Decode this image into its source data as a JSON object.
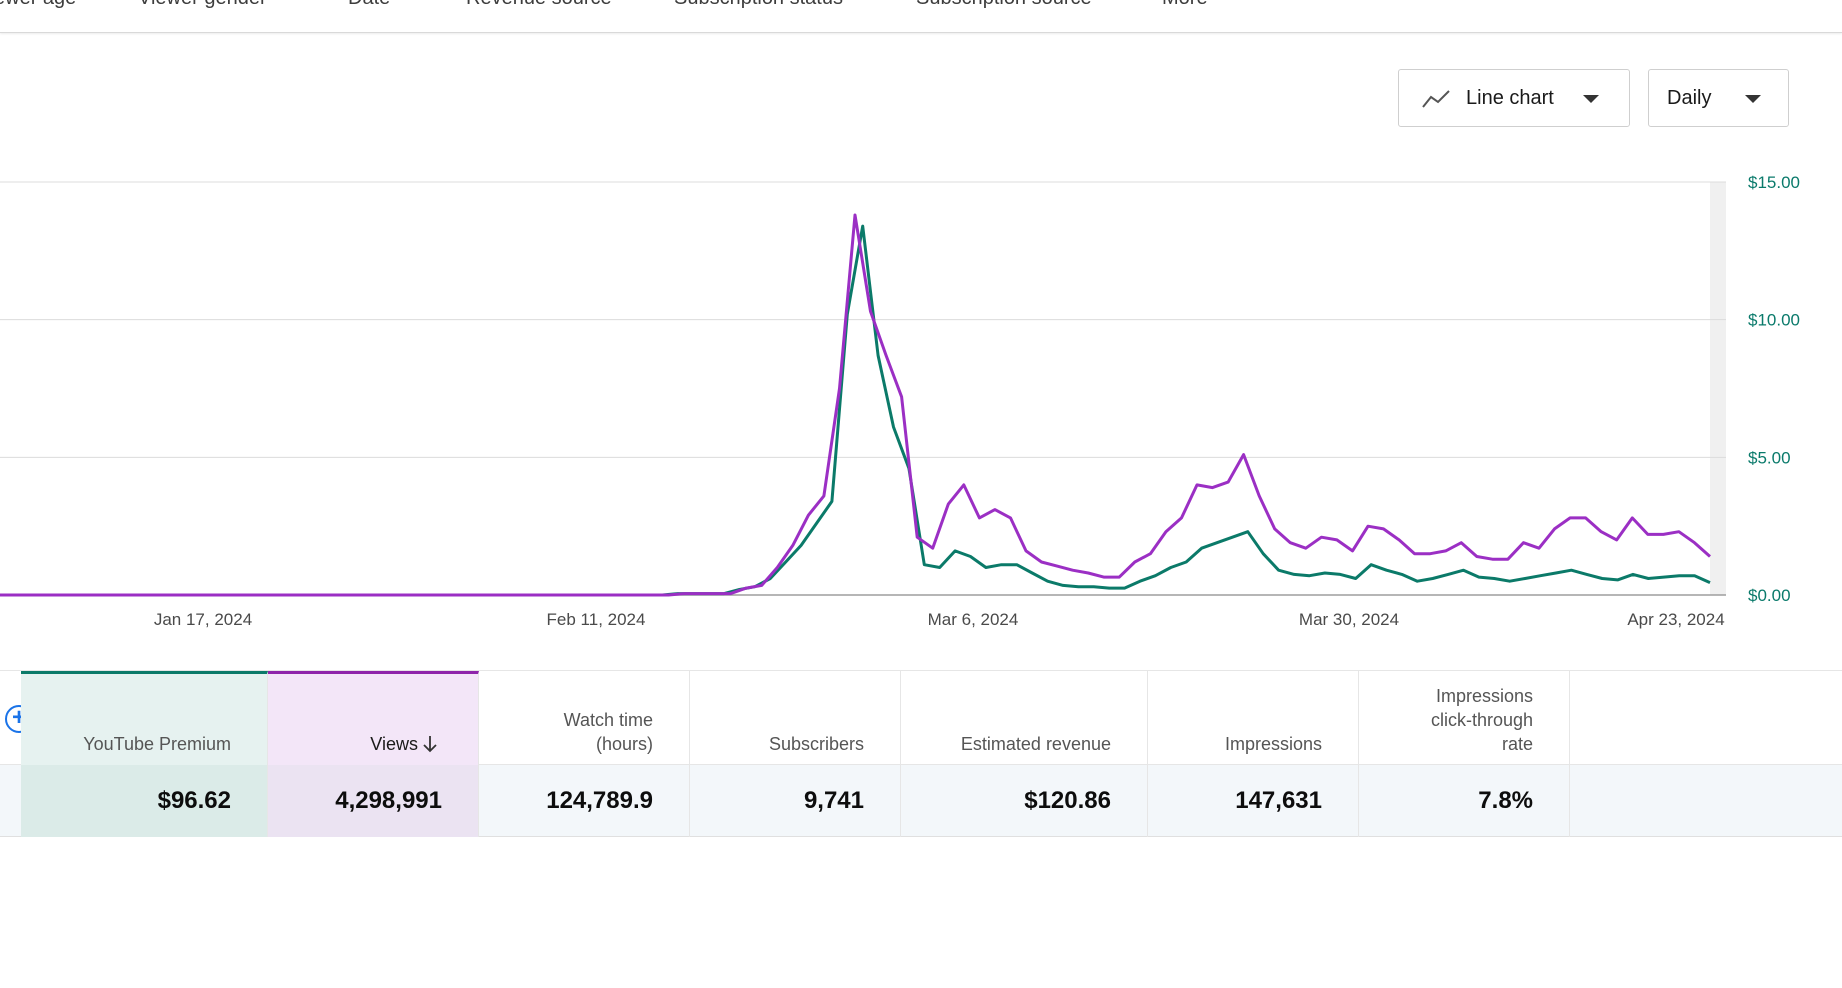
{
  "tabs": [
    "ewer age",
    "Viewer gender",
    "Date",
    "Revenue source",
    "Subscription status",
    "Subscription source",
    "More"
  ],
  "controls": {
    "chart_type_label": "Line chart",
    "chart_type_icon": "line-chart-icon",
    "interval_label": "Daily"
  },
  "colors": {
    "premium": "#0b7a69",
    "views": "#9b2fc4",
    "axis_text": "#0a7a6b"
  },
  "chart_data": {
    "type": "line",
    "x_tick_labels": [
      "Jan 17, 2024",
      "Feb 11, 2024",
      "Mar 6, 2024",
      "Mar 30, 2024",
      "Apr 23, 2024"
    ],
    "y_tick_labels": [
      "$15.00",
      "$10.00",
      "$5.00",
      "$0.00"
    ],
    "ylim": [
      0,
      15
    ],
    "grid": true,
    "series": [
      {
        "name": "YouTube Premium",
        "color": "#0b7a69",
        "values": [
          0,
          0,
          0,
          0,
          0,
          0,
          0,
          0,
          0,
          0,
          0,
          0,
          0,
          0,
          0,
          0,
          0,
          0,
          0,
          0,
          0,
          0,
          0,
          0,
          0,
          0,
          0,
          0,
          0,
          0,
          0,
          0,
          0,
          0,
          0,
          0,
          0,
          0,
          0,
          0,
          0,
          0,
          0,
          0,
          0.05,
          0.05,
          0.05,
          0.05,
          0.2,
          0.3,
          0.6,
          1.2,
          1.8,
          2.6,
          3.4,
          10.2,
          13.4,
          8.7,
          6.1,
          4.6,
          1.1,
          1.0,
          1.6,
          1.4,
          1.0,
          1.1,
          1.1,
          0.8,
          0.5,
          0.35,
          0.3,
          0.3,
          0.25,
          0.25,
          0.5,
          0.7,
          1.0,
          1.2,
          1.7,
          1.9,
          2.1,
          2.3,
          1.5,
          0.9,
          0.75,
          0.7,
          0.8,
          0.75,
          0.6,
          1.1,
          0.9,
          0.75,
          0.5,
          0.6,
          0.75,
          0.9,
          0.65,
          0.6,
          0.5,
          0.6,
          0.7,
          0.8,
          0.9,
          0.75,
          0.6,
          0.55,
          0.75,
          0.6,
          0.65,
          0.7,
          0.7,
          0.45
        ]
      },
      {
        "name": "Views",
        "color": "#9b2fc4",
        "values": [
          0,
          0,
          0,
          0,
          0,
          0,
          0,
          0,
          0,
          0,
          0,
          0,
          0,
          0,
          0,
          0,
          0,
          0,
          0,
          0,
          0,
          0,
          0,
          0,
          0,
          0,
          0,
          0,
          0,
          0,
          0,
          0,
          0,
          0,
          0,
          0,
          0,
          0,
          0,
          0,
          0,
          0,
          0,
          0,
          0.05,
          0.05,
          0.05,
          0.05,
          0.25,
          0.35,
          1.0,
          1.8,
          2.9,
          3.6,
          7.5,
          13.8,
          10.3,
          8.7,
          7.2,
          2.1,
          1.7,
          3.3,
          4.0,
          2.8,
          3.1,
          2.8,
          1.6,
          1.2,
          1.05,
          0.9,
          0.8,
          0.65,
          0.65,
          1.2,
          1.5,
          2.3,
          2.8,
          4.0,
          3.9,
          4.1,
          5.1,
          3.6,
          2.4,
          1.9,
          1.7,
          2.1,
          2.0,
          1.6,
          2.5,
          2.4,
          2.0,
          1.5,
          1.5,
          1.6,
          1.9,
          1.4,
          1.3,
          1.3,
          1.9,
          1.7,
          2.4,
          2.8,
          2.8,
          2.3,
          2.0,
          2.8,
          2.2,
          2.2,
          2.3,
          1.9,
          1.4
        ]
      }
    ]
  },
  "table": {
    "headers": [
      {
        "lines": [
          "YouTube Premium"
        ]
      },
      {
        "lines": [
          "Views"
        ]
      },
      {
        "lines": [
          "Watch time",
          "(hours)"
        ]
      },
      {
        "lines": [
          "Subscribers"
        ]
      },
      {
        "lines": [
          "Estimated revenue"
        ]
      },
      {
        "lines": [
          "Impressions"
        ]
      },
      {
        "lines": [
          "Impressions",
          "click-through",
          "rate"
        ]
      }
    ],
    "values": [
      "$96.62",
      "4,298,991",
      "124,789.9",
      "9,741",
      "$120.86",
      "147,631",
      "7.8%"
    ],
    "sort_icon": "arrow-down-icon",
    "add_icon": "add-circle-icon"
  }
}
